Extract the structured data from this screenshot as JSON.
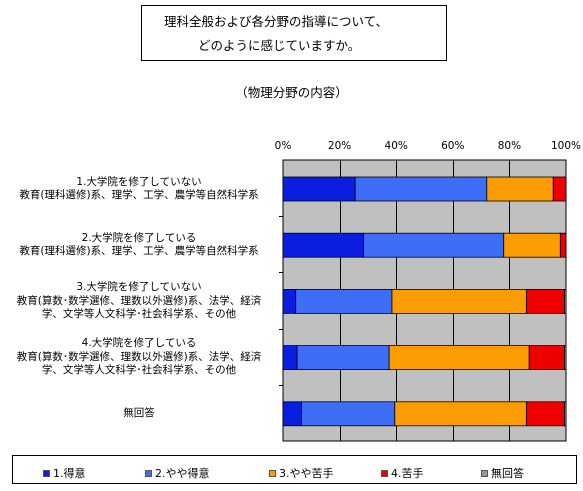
{
  "title": {
    "line1": "理科全般および各分野の指導について、",
    "line2": "どのように感じていますか。"
  },
  "subtitle": "（物理分野の内容）",
  "chart_data": {
    "type": "bar",
    "orientation": "horizontal-stacked-percent",
    "categories": [
      [
        "1.大学院を修了していない",
        "教育(理科選修)系、理学、工学、農学等自然科学系"
      ],
      [
        "2.大学院を修了している",
        "教育(理科選修)系、理学、工学、農学等自然科学系"
      ],
      [
        "3.大学院を修了していない",
        "教育(算数･数学選修、理数以外選修)系、法学、経済",
        "学、文学等人文科学･社会科学系、その他"
      ],
      [
        "4.大学院を修了している",
        "教育(算数･数学選修、理数以外選修)系、法学、経済",
        "学、文学等人文科学･社会科学系、その他"
      ],
      [
        "無回答"
      ]
    ],
    "series": [
      {
        "name": "1.得意",
        "color": "#0a1ee0",
        "values": [
          25.5,
          28.5,
          4.5,
          5.0,
          6.5
        ]
      },
      {
        "name": "2.やや得意",
        "color": "#3d6ef5",
        "values": [
          46.5,
          49.5,
          34.0,
          32.5,
          33.0
        ]
      },
      {
        "name": "3.やや苦手",
        "color": "#fb9c00",
        "values": [
          23.5,
          20.0,
          47.5,
          49.5,
          46.5
        ]
      },
      {
        "name": "4.苦手",
        "color": "#ee0000",
        "values": [
          4.5,
          2.0,
          13.5,
          12.5,
          13.5
        ]
      },
      {
        "name": "無回答",
        "color": "#9a9a9a",
        "values": [
          0.0,
          0.0,
          0.5,
          0.5,
          0.5
        ]
      }
    ],
    "xlim": [
      0,
      100
    ],
    "ticks": [
      "0%",
      "20%",
      "40%",
      "60%",
      "80%",
      "100%"
    ],
    "grid": true,
    "legend_position": "bottom"
  }
}
